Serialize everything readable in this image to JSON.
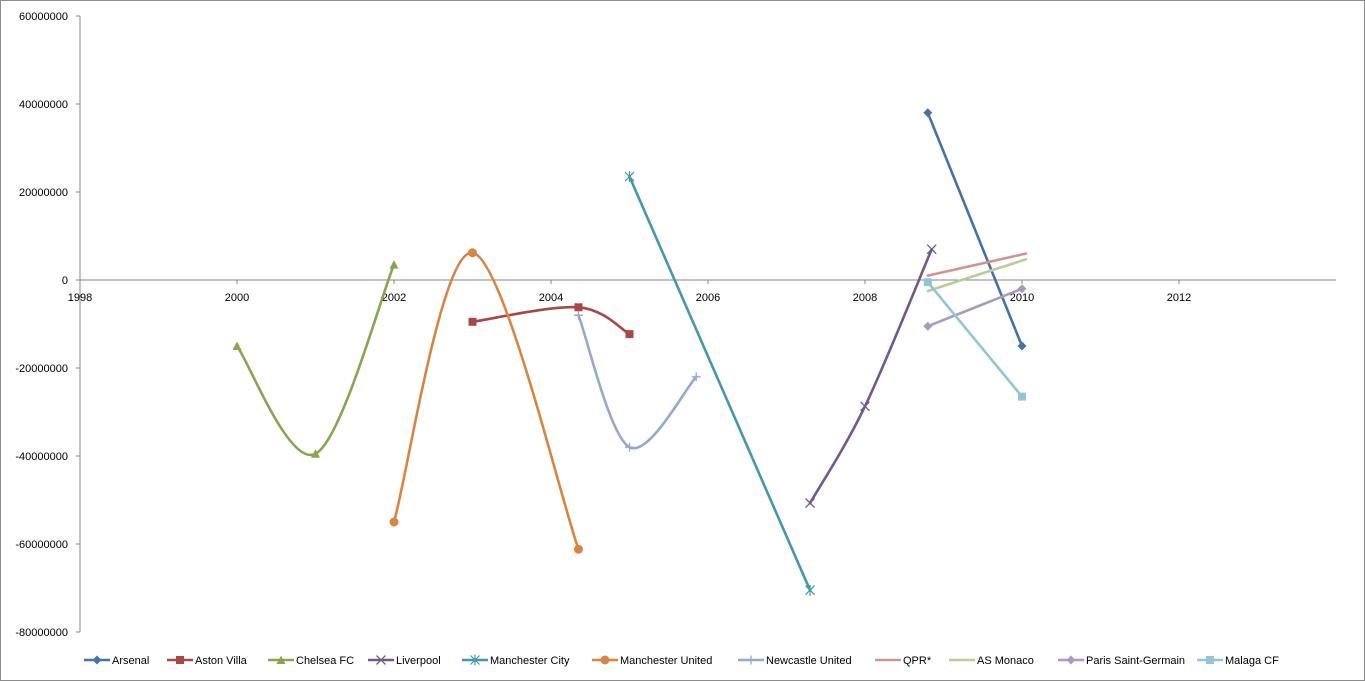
{
  "chart_data": {
    "type": "scatter",
    "title": "",
    "xlabel": "",
    "ylabel": "",
    "xlim": [
      1998,
      2014
    ],
    "ylim": [
      -80000000,
      60000000
    ],
    "x_ticks": [
      "1998",
      "2000",
      "2002",
      "2004",
      "2006",
      "2008",
      "2010",
      "2012"
    ],
    "y_ticks": [
      "60000000",
      "40000000",
      "20000000",
      "0",
      "-20000000",
      "-40000000",
      "-60000000",
      "-80000000"
    ],
    "grid": false,
    "smooth_lines": true,
    "legend_position": "bottom",
    "series": [
      {
        "name": "Arsenal",
        "color": "#4572A7",
        "marker": "diamond",
        "points": [
          [
            2008.8,
            38000000
          ],
          [
            2010,
            -15000000
          ]
        ]
      },
      {
        "name": "Aston Villa",
        "color": "#AA4643",
        "marker": "square",
        "points": [
          [
            2003,
            -9500000
          ],
          [
            2004.35,
            -6200000
          ],
          [
            2005,
            -12300000
          ]
        ]
      },
      {
        "name": "Chelsea FC",
        "color": "#89A54E",
        "marker": "triangle",
        "points": [
          [
            2000,
            -15000000
          ],
          [
            2001,
            -39500000
          ],
          [
            2002,
            3500000
          ]
        ]
      },
      {
        "name": "Liverpool",
        "color": "#71588F",
        "marker": "x",
        "points": [
          [
            2007.3,
            -50700000
          ],
          [
            2008,
            -28700000
          ],
          [
            2008.85,
            7000000
          ]
        ]
      },
      {
        "name": "Manchester City",
        "color": "#4198AF",
        "marker": "star",
        "points": [
          [
            2005,
            23500000
          ],
          [
            2007.3,
            -70500000
          ]
        ]
      },
      {
        "name": "Manchester United",
        "color": "#DB843D",
        "marker": "circle",
        "points": [
          [
            2002,
            -55000000
          ],
          [
            2003,
            6200000
          ],
          [
            2004.35,
            -61200000
          ]
        ]
      },
      {
        "name": "Newcastle United",
        "color": "#93A9CF",
        "marker": "plus",
        "points": [
          [
            2004.35,
            -8000000
          ],
          [
            2005,
            -38000000
          ],
          [
            2005.85,
            -22000000
          ]
        ]
      },
      {
        "name": "QPR*",
        "color": "#D19392",
        "marker": "none",
        "points": [
          [
            2008.8,
            1000000
          ],
          [
            2010.05,
            6000000
          ]
        ]
      },
      {
        "name": "AS Monaco",
        "color": "#B9CD96",
        "marker": "none",
        "points": [
          [
            2008.8,
            -2500000
          ],
          [
            2010.05,
            4700000
          ]
        ]
      },
      {
        "name": "Paris Saint-Germain",
        "color": "#A99BBD",
        "marker": "diamond",
        "points": [
          [
            2008.8,
            -10500000
          ],
          [
            2010,
            -2000000
          ]
        ]
      },
      {
        "name": "Malaga CF",
        "color": "#92C5D5",
        "marker": "square",
        "points": [
          [
            2008.8,
            -500000
          ],
          [
            2010,
            -26500000
          ]
        ]
      }
    ]
  }
}
